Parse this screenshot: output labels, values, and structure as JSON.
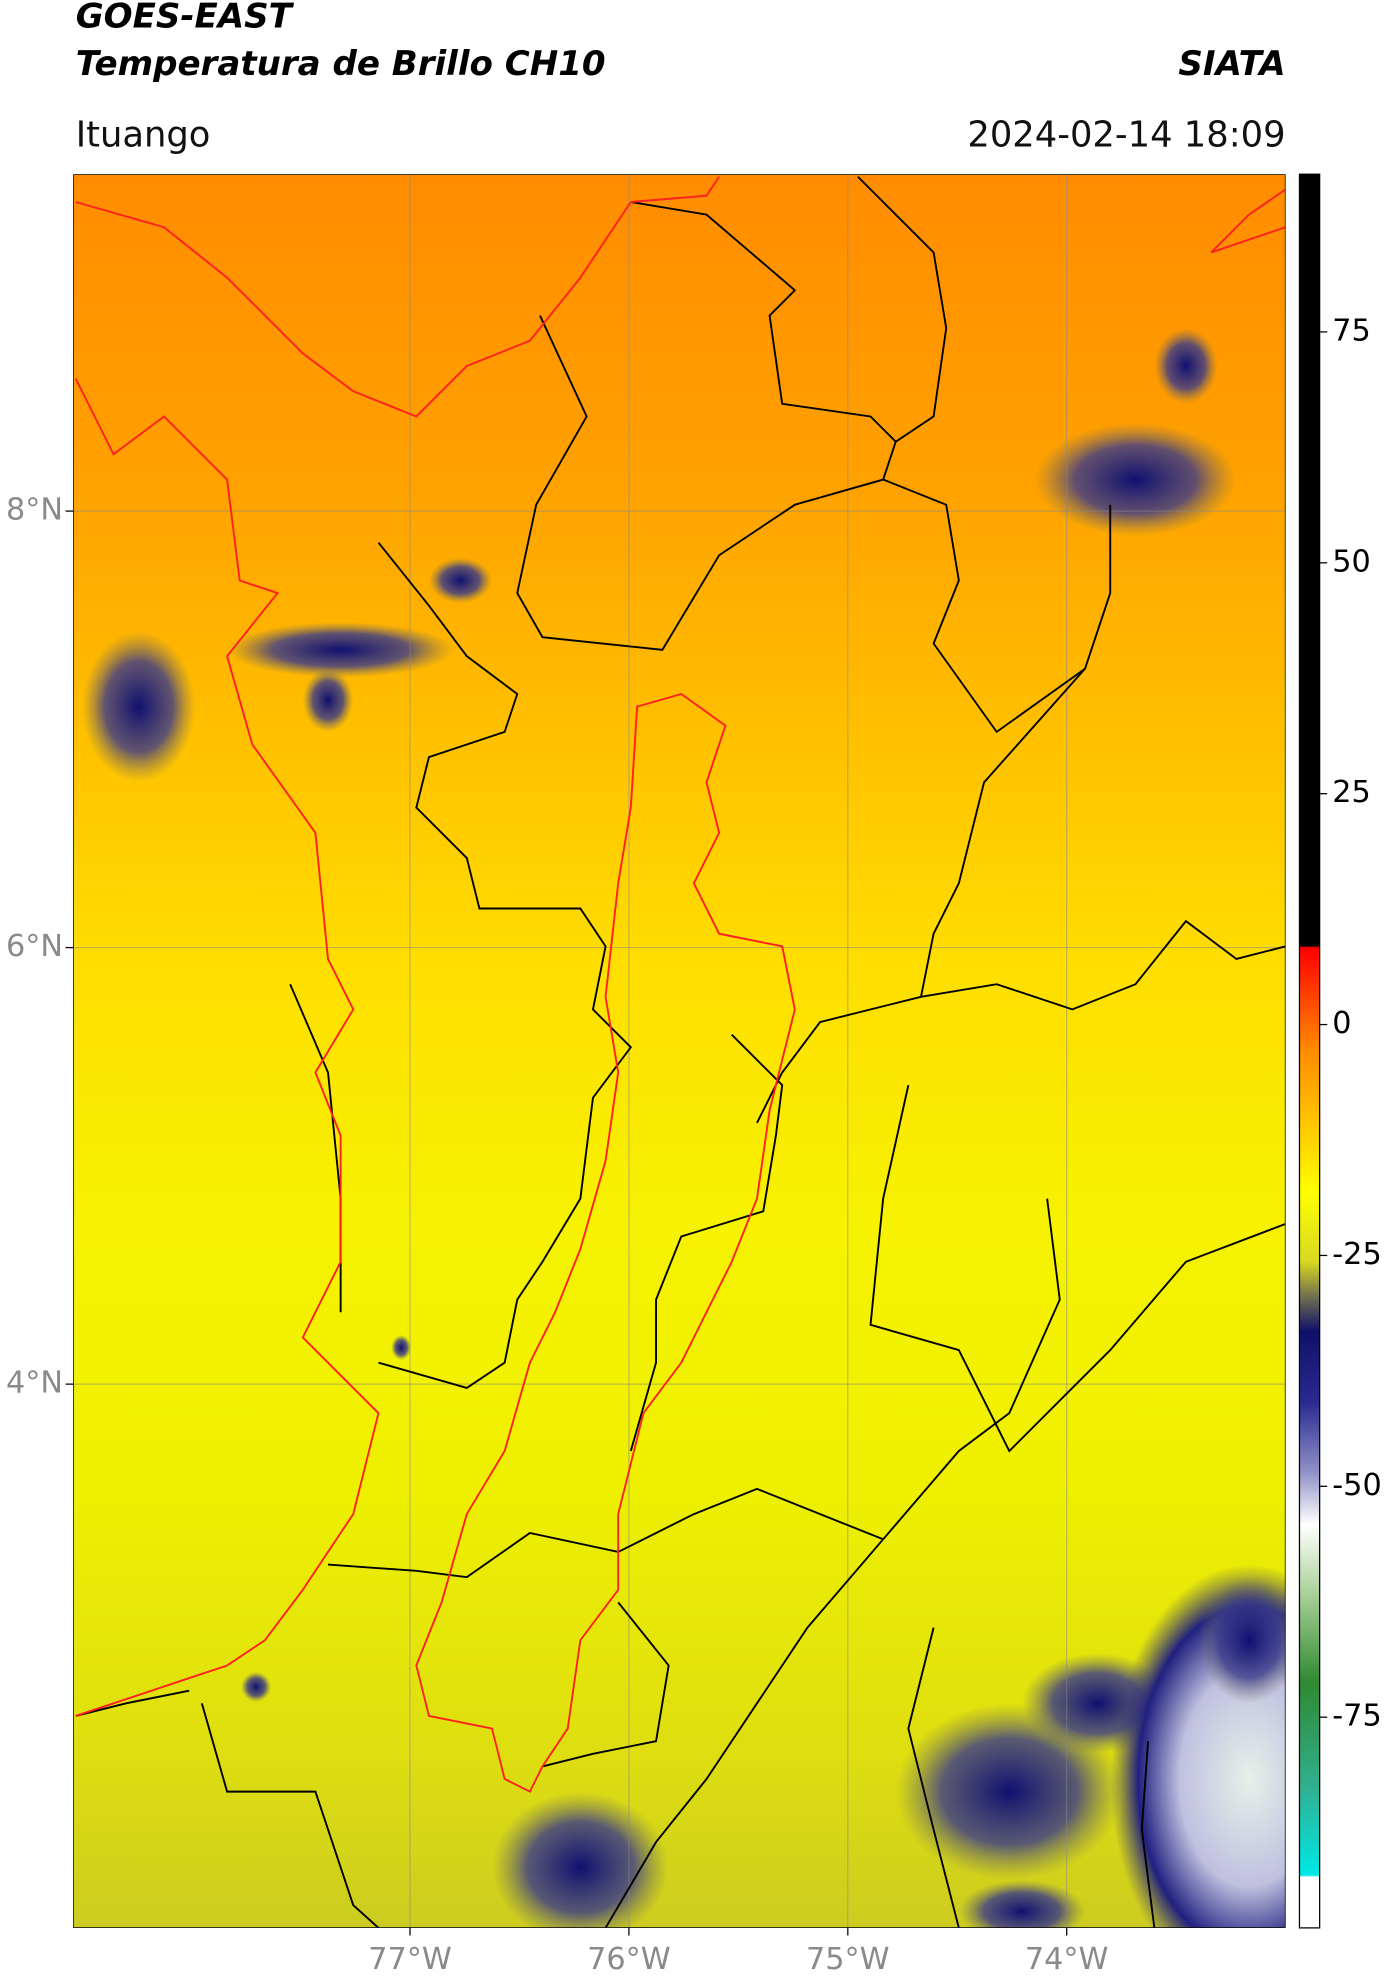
{
  "header": {
    "title": "GOES-EAST",
    "subtitle": "Temperatura de Brillo CH10",
    "brand": "SIATA",
    "region": "Ituango",
    "timestamp": "2024-02-14 18:09"
  },
  "map": {
    "lat_ticks": [
      {
        "value": 8,
        "label": "8°N"
      },
      {
        "value": 6,
        "label": "6°N"
      },
      {
        "value": 4,
        "label": "4°N"
      }
    ],
    "lon_ticks": [
      {
        "value": -77,
        "label": "77°W"
      },
      {
        "value": -76,
        "label": "76°W"
      },
      {
        "value": -75,
        "label": "75°W"
      },
      {
        "value": -74,
        "label": "74°W"
      }
    ]
  },
  "colorbar": {
    "ticks": [
      75,
      50,
      25,
      0,
      -25,
      -50,
      -75
    ]
  }
}
